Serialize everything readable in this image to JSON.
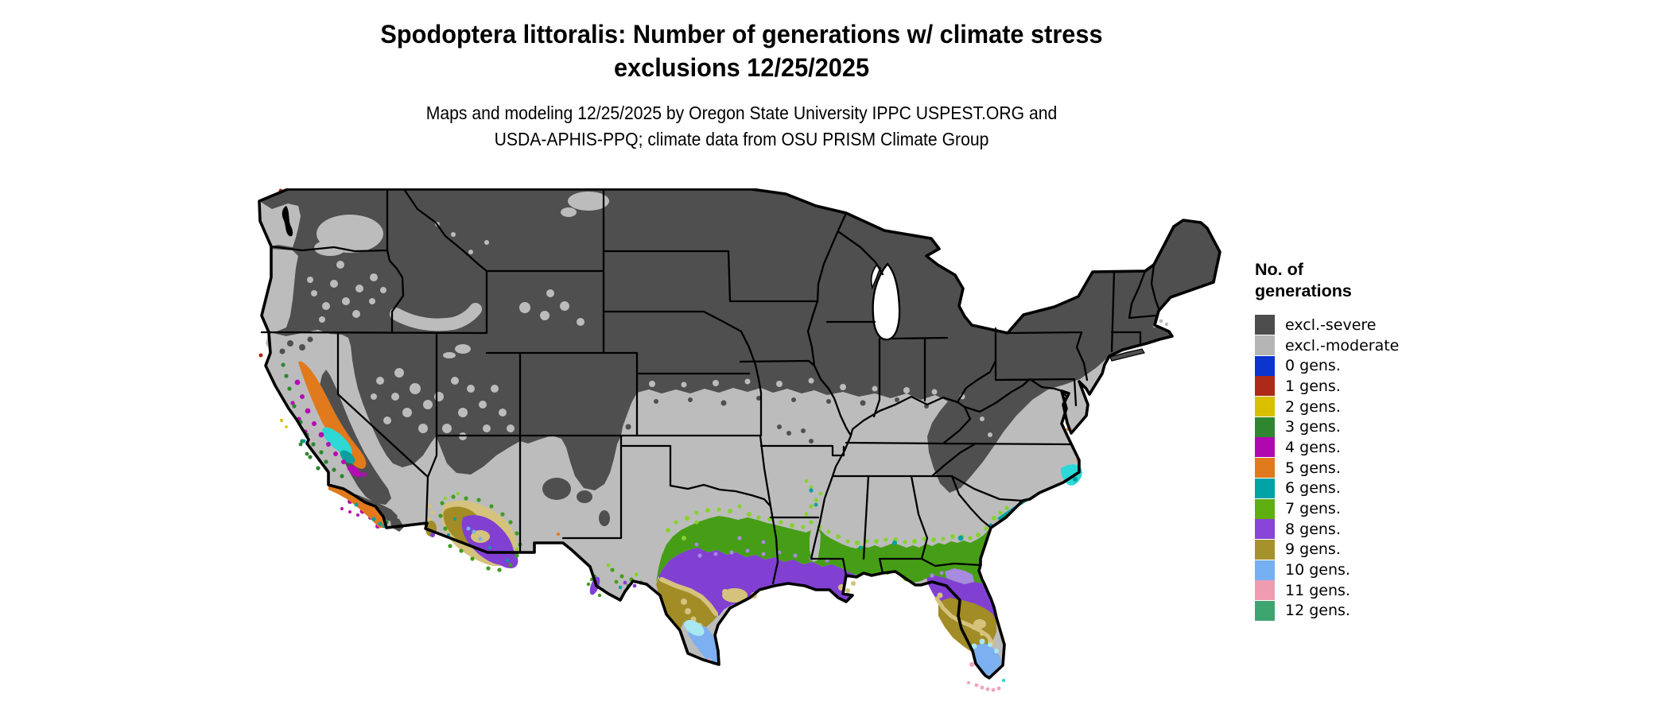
{
  "title": {
    "line1": "Spodoptera littoralis: Number of generations w/ climate stress",
    "line2": "exclusions 12/25/2025"
  },
  "subtitle": {
    "line1": "Maps and modeling 12/25/2025 by Oregon State University IPPC USPEST.ORG and",
    "line2": "USDA-APHIS-PPQ; climate data from OSU PRISM Climate Group"
  },
  "legend": {
    "title_line1": "No. of",
    "title_line2": "generations",
    "items": [
      {
        "label": "excl.-severe",
        "color": "#4d4d4d"
      },
      {
        "label": "excl.-moderate",
        "color": "#b5b5b5"
      },
      {
        "label": "0 gens.",
        "color": "#0c35d0"
      },
      {
        "label": "1 gens.",
        "color": "#ae2a18"
      },
      {
        "label": "2 gens.",
        "color": "#d8bf00"
      },
      {
        "label": "3 gens.",
        "color": "#2e8631"
      },
      {
        "label": "4 gens.",
        "color": "#b008b0"
      },
      {
        "label": "5 gens.",
        "color": "#e0791c"
      },
      {
        "label": "6 gens.",
        "color": "#00a2a6"
      },
      {
        "label": "7 gens.",
        "color": "#5fae10"
      },
      {
        "label": "8 gens.",
        "color": "#8844d6"
      },
      {
        "label": "9 gens.",
        "color": "#a6922c"
      },
      {
        "label": "10 gens.",
        "color": "#74b0f2"
      },
      {
        "label": "11 gens.",
        "color": "#f09cb0"
      },
      {
        "label": "12 gens.",
        "color": "#3ea571"
      }
    ]
  },
  "map": {
    "region_label": "Contiguous United States",
    "colors": {
      "excl_severe": "#4f4f4f",
      "excl_moderate": "#bcbcbc",
      "gens7_band": "#469e16",
      "gens7_fringe": "#86d22e",
      "gens8_band": "#8140d2",
      "gens8_fringe": "#a88ae0",
      "gens9_band": "#a18c26",
      "gens9_fringe": "#d5c27c",
      "gens10_band": "#7cb0f0",
      "gens10_fringe": "#a8e8f2",
      "gens11": "#f2a4ba",
      "gens6": "#00a0a4",
      "gens5": "#e07a1c",
      "gens4": "#b30cb3",
      "gens3": "#2e8631",
      "gens2": "#d8bf00",
      "gens1": "#ab2a16"
    }
  }
}
